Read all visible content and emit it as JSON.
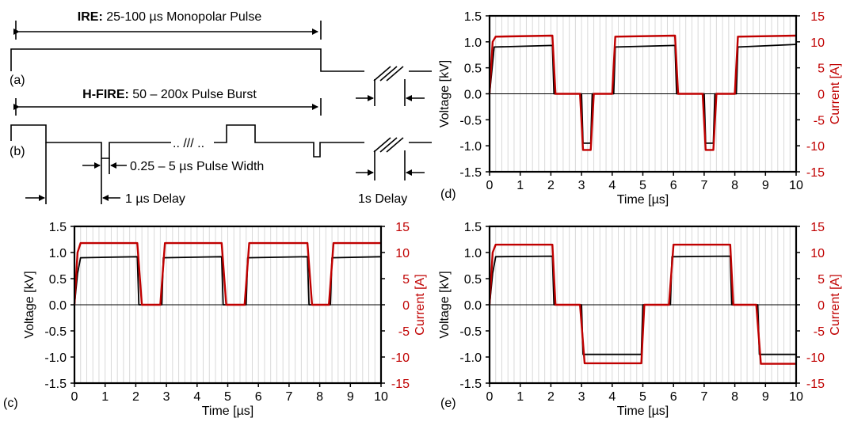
{
  "schematic": {
    "ire_bold": "IRE:",
    "ire_text": " 25-100 µs Monopolar Pulse",
    "hfire_bold": "H-FIRE:",
    "hfire_text": " 50 – 200x Pulse Burst",
    "ellipsis": ".. /// ..",
    "pulse_width": "0.25 – 5 µs Pulse Width",
    "inter_delay": "1 µs Delay",
    "burst_delay": "1s Delay",
    "label_a": "(a)",
    "label_b": "(b)"
  },
  "colors": {
    "voltage": "#000000",
    "current": "#c00000",
    "grid": "#d9d9d9"
  },
  "chart_data": [
    {
      "panel": "(d)",
      "type": "line",
      "xlabel": "Time [µs]",
      "ylabel": "Voltage [kV]",
      "y2label": "Current [A]",
      "xlim": [
        0,
        10
      ],
      "ylim": [
        -1.5,
        1.5
      ],
      "y2lim": [
        -15,
        15
      ],
      "xticks": [
        0,
        1,
        2,
        3,
        4,
        5,
        6,
        7,
        8,
        9,
        10
      ],
      "yticks": [
        -1.5,
        -1.0,
        -0.5,
        0.0,
        0.5,
        1.0,
        1.5
      ],
      "y2ticks": [
        -15,
        -10,
        -5,
        0,
        5,
        10,
        15
      ],
      "grid": true,
      "voltage_kV": [
        [
          0,
          0
        ],
        [
          0.1,
          0.6
        ],
        [
          0.15,
          0.9
        ],
        [
          2.05,
          0.93
        ],
        [
          2.1,
          0
        ],
        [
          3,
          0
        ],
        [
          3.05,
          -0.95
        ],
        [
          3.3,
          -0.95
        ],
        [
          3.35,
          0
        ],
        [
          4.05,
          0
        ],
        [
          4.1,
          0.9
        ],
        [
          6.05,
          0.93
        ],
        [
          6.1,
          0
        ],
        [
          7,
          0
        ],
        [
          7.05,
          -0.95
        ],
        [
          7.3,
          -0.95
        ],
        [
          7.35,
          0
        ],
        [
          8.05,
          0
        ],
        [
          8.1,
          0.9
        ],
        [
          10,
          0.95
        ]
      ],
      "current_A": [
        [
          0,
          0
        ],
        [
          0.1,
          10
        ],
        [
          0.2,
          11
        ],
        [
          2.05,
          11.2
        ],
        [
          2.15,
          0
        ],
        [
          2.95,
          0
        ],
        [
          3.05,
          -10.8
        ],
        [
          3.3,
          -10.8
        ],
        [
          3.4,
          0
        ],
        [
          4.0,
          0
        ],
        [
          4.1,
          11
        ],
        [
          6.05,
          11.2
        ],
        [
          6.15,
          0
        ],
        [
          6.95,
          0
        ],
        [
          7.05,
          -10.8
        ],
        [
          7.3,
          -10.8
        ],
        [
          7.4,
          0
        ],
        [
          8.0,
          0
        ],
        [
          8.1,
          11
        ],
        [
          10,
          11.2
        ]
      ]
    },
    {
      "panel": "(c)",
      "type": "line",
      "xlabel": "Time [µs]",
      "ylabel": "Voltage [kV]",
      "y2label": "Current [A]",
      "xlim": [
        0,
        10
      ],
      "ylim": [
        -1.5,
        1.5
      ],
      "y2lim": [
        -15,
        15
      ],
      "xticks": [
        0,
        1,
        2,
        3,
        4,
        5,
        6,
        7,
        8,
        9,
        10
      ],
      "yticks": [
        -1.5,
        -1.0,
        -0.5,
        0.0,
        0.5,
        1.0,
        1.5
      ],
      "y2ticks": [
        -15,
        -10,
        -5,
        0,
        5,
        10,
        15
      ],
      "grid": true,
      "voltage_kV": [
        [
          0,
          0
        ],
        [
          0.1,
          0.6
        ],
        [
          0.2,
          0.9
        ],
        [
          2.05,
          0.92
        ],
        [
          2.1,
          0
        ],
        [
          2.85,
          0
        ],
        [
          2.9,
          0.9
        ],
        [
          4.8,
          0.92
        ],
        [
          4.85,
          0
        ],
        [
          5.6,
          0
        ],
        [
          5.65,
          0.9
        ],
        [
          7.6,
          0.92
        ],
        [
          7.65,
          0
        ],
        [
          8.35,
          0
        ],
        [
          8.4,
          0.9
        ],
        [
          10,
          0.92
        ]
      ],
      "current_A": [
        [
          0,
          0
        ],
        [
          0.1,
          10
        ],
        [
          0.2,
          11.8
        ],
        [
          2.05,
          11.8
        ],
        [
          2.2,
          0
        ],
        [
          2.8,
          0
        ],
        [
          2.95,
          11.8
        ],
        [
          4.8,
          11.8
        ],
        [
          4.95,
          0
        ],
        [
          5.55,
          0
        ],
        [
          5.7,
          11.8
        ],
        [
          7.6,
          11.8
        ],
        [
          7.75,
          0
        ],
        [
          8.3,
          0
        ],
        [
          8.45,
          11.8
        ],
        [
          10,
          11.8
        ]
      ]
    },
    {
      "panel": "(e)",
      "type": "line",
      "xlabel": "Time [µs]",
      "ylabel": "Voltage [kV]",
      "y2label": "Current [A]",
      "xlim": [
        0,
        10
      ],
      "ylim": [
        -1.5,
        1.5
      ],
      "y2lim": [
        -15,
        15
      ],
      "xticks": [
        0,
        1,
        2,
        3,
        4,
        5,
        6,
        7,
        8,
        9,
        10
      ],
      "yticks": [
        -1.5,
        -1.0,
        -0.5,
        0.0,
        0.5,
        1.0,
        1.5
      ],
      "y2ticks": [
        -15,
        -10,
        -5,
        0,
        5,
        10,
        15
      ],
      "grid": true,
      "voltage_kV": [
        [
          0,
          0
        ],
        [
          0.1,
          0.6
        ],
        [
          0.2,
          0.92
        ],
        [
          2.05,
          0.93
        ],
        [
          2.1,
          0
        ],
        [
          3,
          0
        ],
        [
          3.05,
          -0.95
        ],
        [
          4.95,
          -0.95
        ],
        [
          5,
          0
        ],
        [
          5.9,
          0
        ],
        [
          5.95,
          0.92
        ],
        [
          7.85,
          0.93
        ],
        [
          7.9,
          0
        ],
        [
          8.75,
          0
        ],
        [
          8.8,
          -0.95
        ],
        [
          10,
          -0.95
        ]
      ],
      "current_A": [
        [
          0,
          0
        ],
        [
          0.1,
          10
        ],
        [
          0.2,
          11.5
        ],
        [
          2.05,
          11.5
        ],
        [
          2.15,
          0
        ],
        [
          2.95,
          0
        ],
        [
          3.1,
          -11.2
        ],
        [
          4.95,
          -11.2
        ],
        [
          5.05,
          0
        ],
        [
          5.85,
          0
        ],
        [
          6.0,
          11.5
        ],
        [
          7.85,
          11.5
        ],
        [
          7.95,
          0
        ],
        [
          8.7,
          0
        ],
        [
          8.85,
          -11.3
        ],
        [
          10,
          -11.3
        ]
      ]
    }
  ]
}
